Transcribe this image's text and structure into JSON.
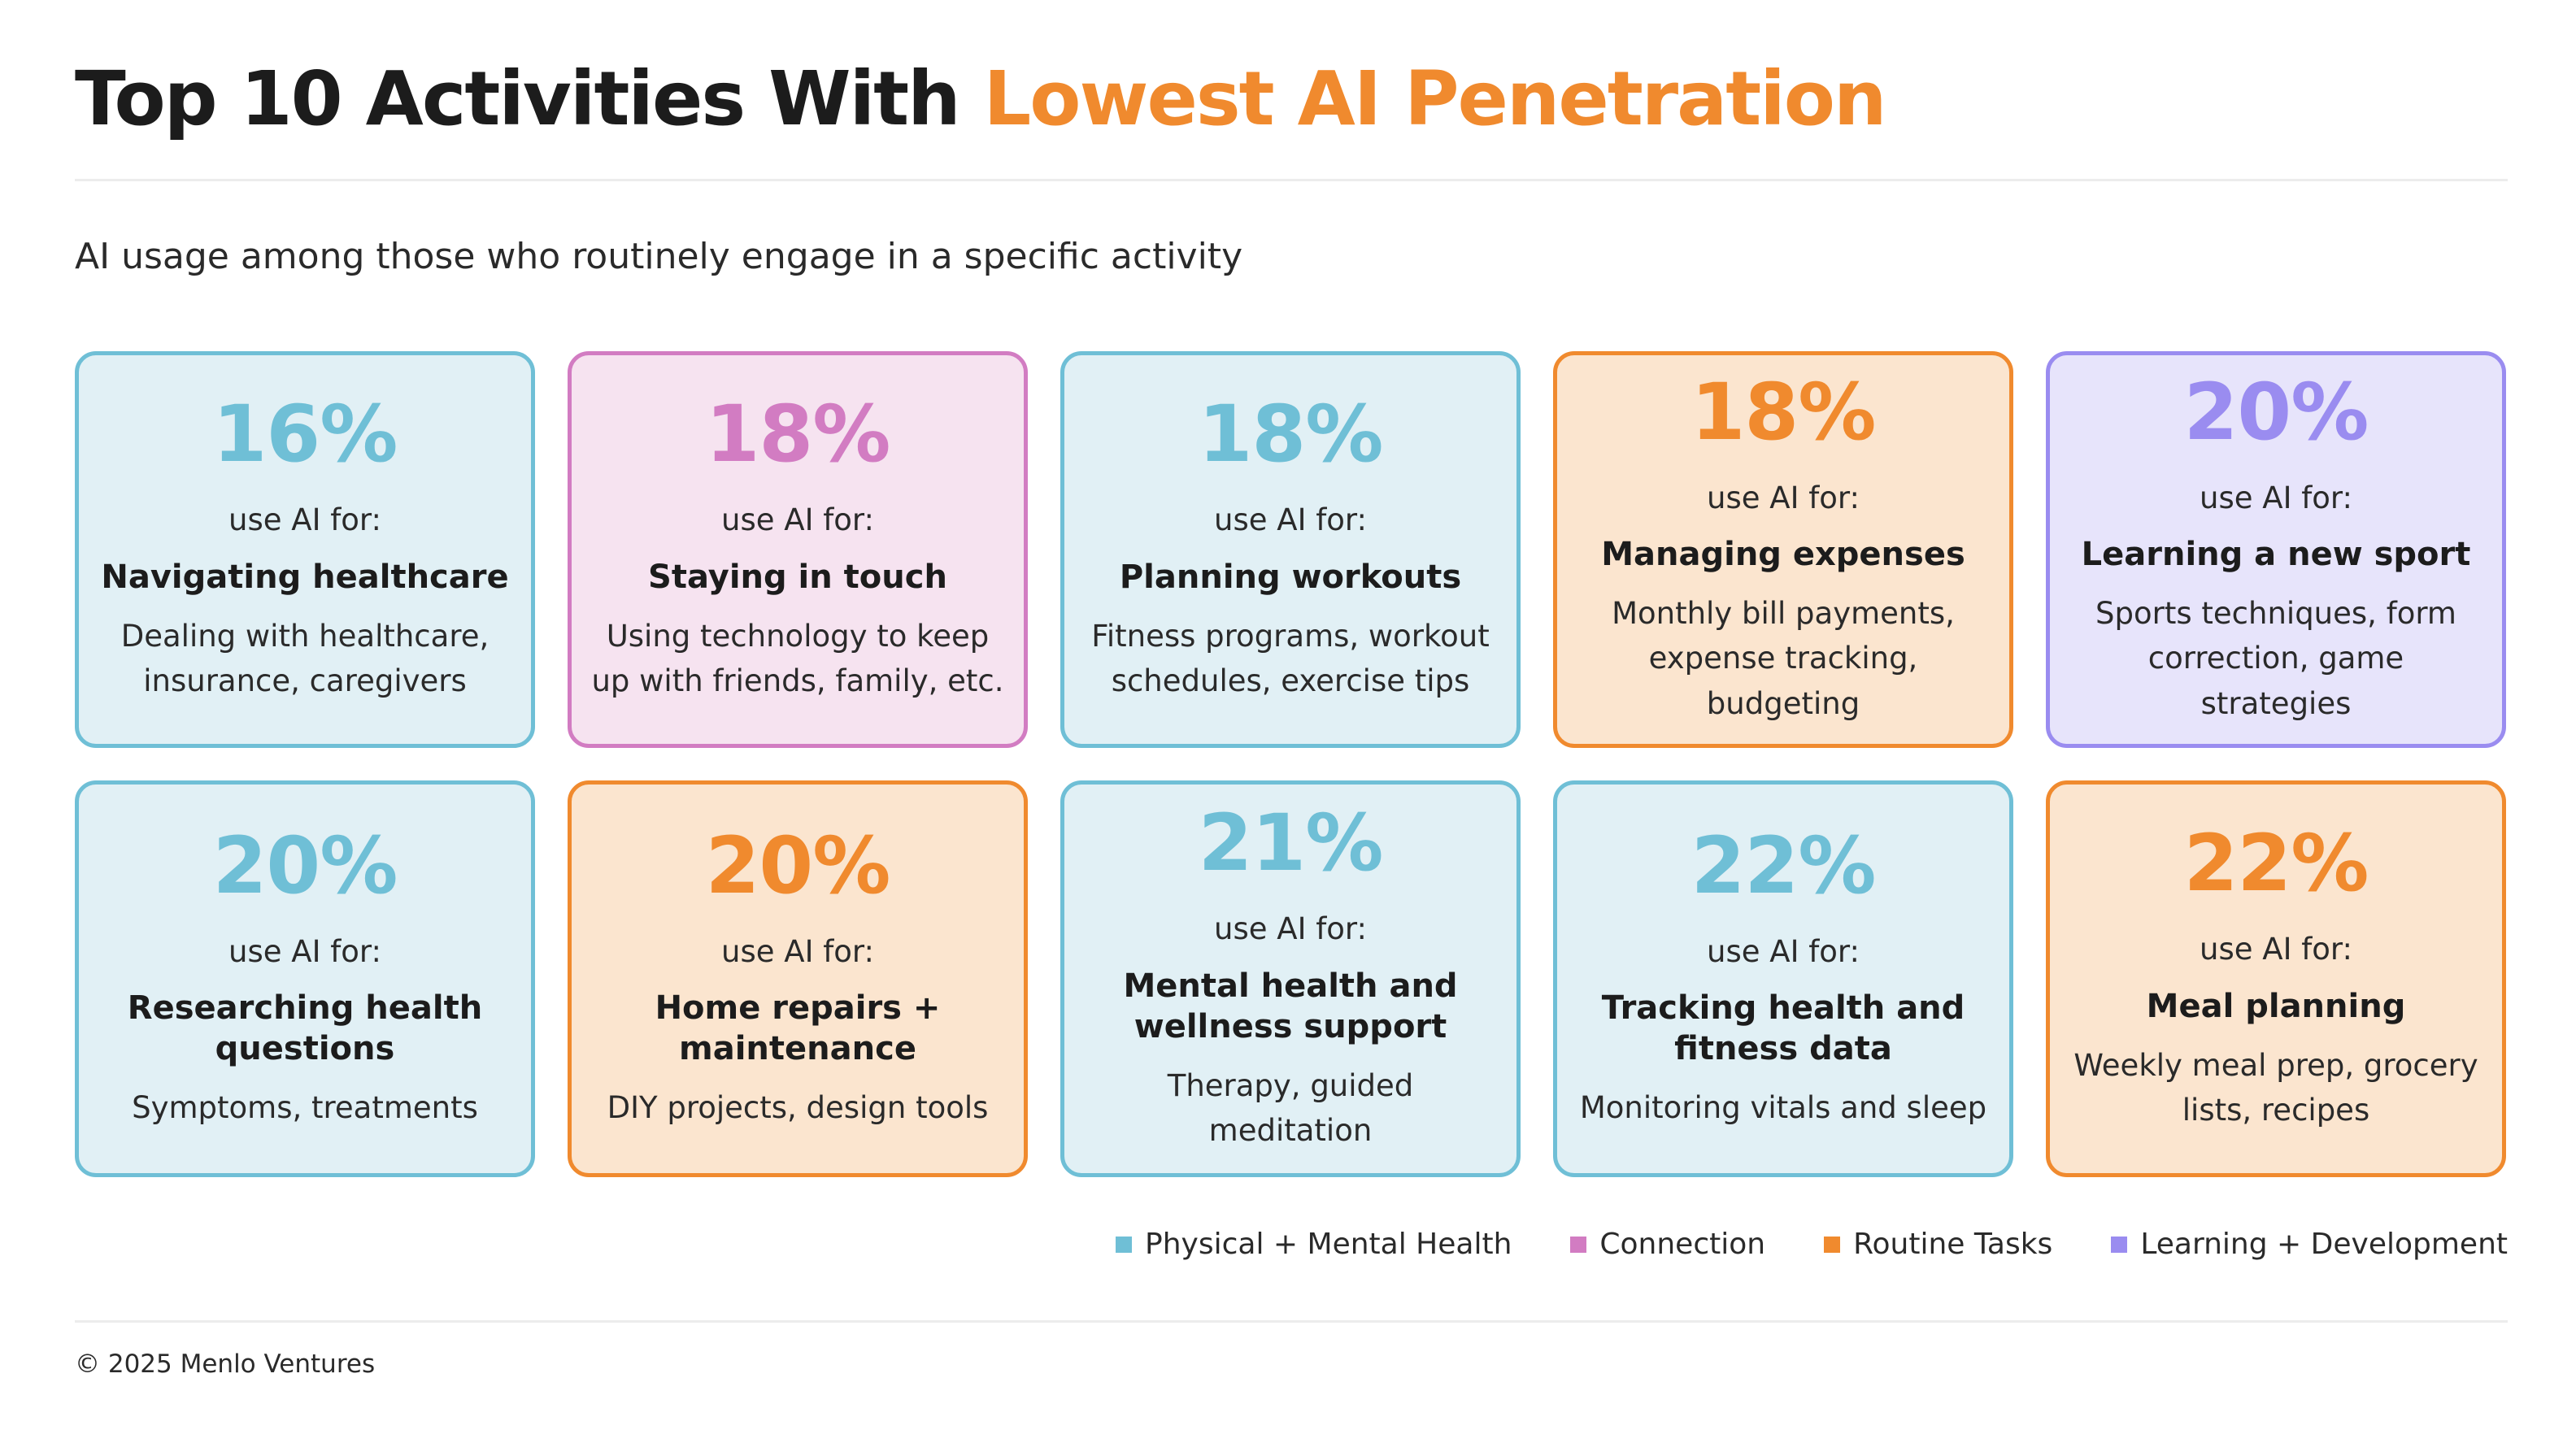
{
  "title": {
    "main": "Top 10 Activities With ",
    "highlight": "Lowest AI Penetration"
  },
  "subtitle": "AI usage among those who routinely engage in a specific activity",
  "colors": {
    "health": "#6fbfd6",
    "connection": "#d27cc2",
    "routine": "#f08a2e",
    "learning": "#9a8cf0",
    "title_accent": "#f08a2e"
  },
  "cards": [
    {
      "percent": "16%",
      "prefix": "use AI for:",
      "activity": "Navigating healthcare",
      "description": "Dealing with healthcare, insurance, caregivers",
      "category": "health"
    },
    {
      "percent": "18%",
      "prefix": "use AI for:",
      "activity": "Staying in touch",
      "description": "Using technology to keep up with friends, family, etc.",
      "category": "connection"
    },
    {
      "percent": "18%",
      "prefix": "use AI for:",
      "activity": "Planning workouts",
      "description": "Fitness programs, workout schedules, exercise tips",
      "category": "health"
    },
    {
      "percent": "18%",
      "prefix": "use AI for:",
      "activity": "Managing expenses",
      "description": "Monthly bill payments, expense tracking, budgeting",
      "category": "routine"
    },
    {
      "percent": "20%",
      "prefix": "use AI for:",
      "activity": "Learning a new sport",
      "description": "Sports techniques, form correction, game strategies",
      "category": "learning"
    },
    {
      "percent": "20%",
      "prefix": "use AI for:",
      "activity": "Researching health questions",
      "description": "Symptoms, treatments",
      "category": "health"
    },
    {
      "percent": "20%",
      "prefix": "use AI for:",
      "activity": "Home repairs + maintenance",
      "description": "DIY projects, design tools",
      "category": "routine"
    },
    {
      "percent": "21%",
      "prefix": "use AI for:",
      "activity": "Mental health and wellness support",
      "description": "Therapy, guided meditation",
      "category": "health"
    },
    {
      "percent": "22%",
      "prefix": "use AI for:",
      "activity": "Tracking health and fitness data",
      "description": "Monitoring vitals and sleep",
      "category": "health"
    },
    {
      "percent": "22%",
      "prefix": "use AI for:",
      "activity": "Meal planning",
      "description": "Weekly meal prep, grocery lists, recipes",
      "category": "routine"
    }
  ],
  "legend": [
    {
      "label": "Physical + Mental Health",
      "category": "health"
    },
    {
      "label": "Connection",
      "category": "connection"
    },
    {
      "label": "Routine Tasks",
      "category": "routine"
    },
    {
      "label": "Learning + Development",
      "category": "learning"
    }
  ],
  "footer": "© 2025 Menlo Ventures"
}
